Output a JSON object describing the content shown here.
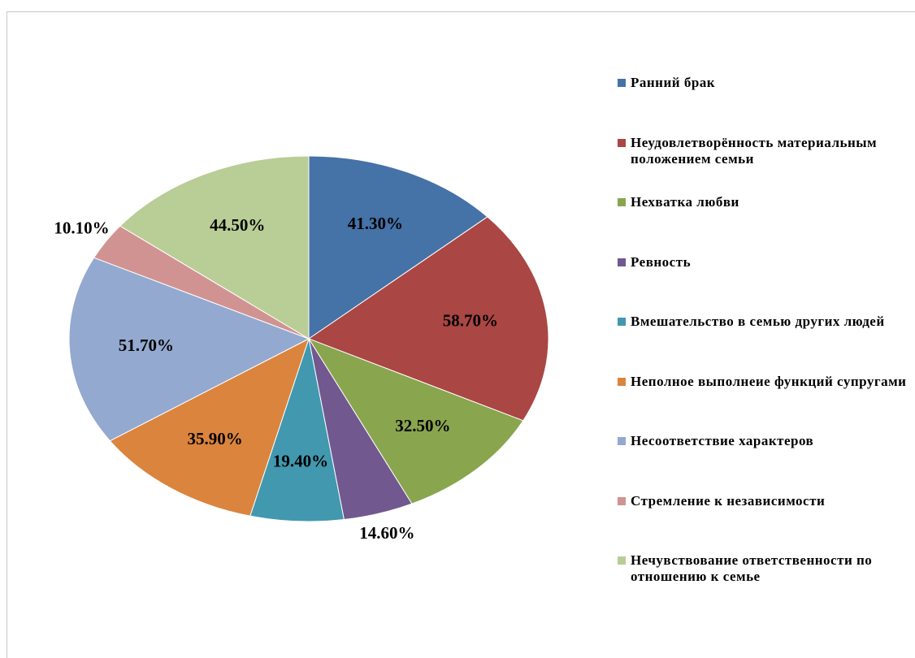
{
  "chart_data": {
    "type": "pie",
    "categories": [
      "Ранний брак",
      "Неудовлетворённость материальным положением семьи",
      "Нехватка любви",
      "Ревность",
      "Вмешательство в семью других людей",
      "Неполное выполнеие функций супругами",
      "Несоответствие характеров",
      "Стремление к независимости",
      "Нечувствование ответственности по отношению к семье"
    ],
    "values": [
      41.3,
      58.7,
      32.5,
      14.6,
      19.4,
      35.9,
      51.7,
      10.1,
      44.5
    ],
    "value_labels": [
      "41.30%",
      "58.70%",
      "32.50%",
      "14.60%",
      "19.40%",
      "35.90%",
      "51.70%",
      "10.10%",
      "44.50%"
    ],
    "colors": [
      "#4572a7",
      "#aa4643",
      "#89a54e",
      "#71588f",
      "#4198af",
      "#db843d",
      "#93a9cf",
      "#d19392",
      "#b9cd96"
    ],
    "legend": "right"
  }
}
